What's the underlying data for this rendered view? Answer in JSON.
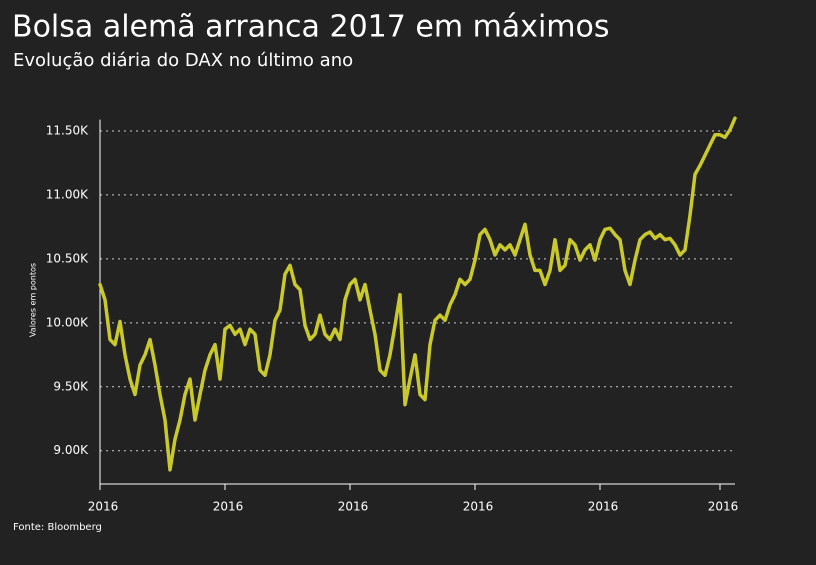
{
  "chart_data": {
    "type": "line",
    "title": "Bolsa alemã arranca 2017 em máximos",
    "subtitle": "Evolução diária do DAX no último ano",
    "y_label": "Valores em pontos",
    "source": "Fonte: Bloomberg",
    "color": "#c9c92b",
    "grid": true,
    "ylim": [
      8740,
      11620
    ],
    "yticks": [
      {
        "value": 9000,
        "label": "9.00K"
      },
      {
        "value": 9500,
        "label": "9.50K"
      },
      {
        "value": 10000,
        "label": "10.00K"
      },
      {
        "value": 10500,
        "label": "10.50K"
      },
      {
        "value": 11000,
        "label": "11.00K"
      },
      {
        "value": 11500,
        "label": "11.50K"
      }
    ],
    "xticks": [
      {
        "value": 0,
        "label": "2016"
      },
      {
        "value": 25,
        "label": "2016"
      },
      {
        "value": 50,
        "label": "2016"
      },
      {
        "value": 75,
        "label": "2016"
      },
      {
        "value": 100,
        "label": "2016"
      },
      {
        "value": 124,
        "label": "2016"
      }
    ],
    "values": [
      10300,
      10180,
      9870,
      9830,
      10010,
      9750,
      9560,
      9440,
      9670,
      9750,
      9870,
      9670,
      9440,
      9240,
      8850,
      9090,
      9240,
      9440,
      9560,
      9240,
      9440,
      9630,
      9750,
      9830,
      9560,
      9950,
      9980,
      9910,
      9950,
      9830,
      9950,
      9910,
      9630,
      9590,
      9750,
      10020,
      10100,
      10380,
      10450,
      10300,
      10260,
      9980,
      9870,
      9910,
      10060,
      9910,
      9870,
      9950,
      9870,
      10180,
      10300,
      10340,
      10180,
      10300,
      10100,
      9910,
      9630,
      9590,
      9750,
      9980,
      10220,
      9360,
      9560,
      9750,
      9440,
      9400,
      9830,
      10020,
      10060,
      10020,
      10140,
      10220,
      10340,
      10300,
      10340,
      10490,
      10690,
      10730,
      10650,
      10530,
      10610,
      10570,
      10610,
      10530,
      10650,
      10770,
      10530,
      10410,
      10410,
      10300,
      10410,
      10650,
      10410,
      10450,
      10650,
      10610,
      10490,
      10570,
      10610,
      10490,
      10650,
      10730,
      10740,
      10690,
      10650,
      10410,
      10300,
      10490,
      10650,
      10690,
      10710,
      10660,
      10690,
      10650,
      10660,
      10610,
      10530,
      10570,
      10840,
      11160,
      11230,
      11310,
      11390,
      11470,
      11470,
      11450,
      11510,
      11600
    ]
  }
}
